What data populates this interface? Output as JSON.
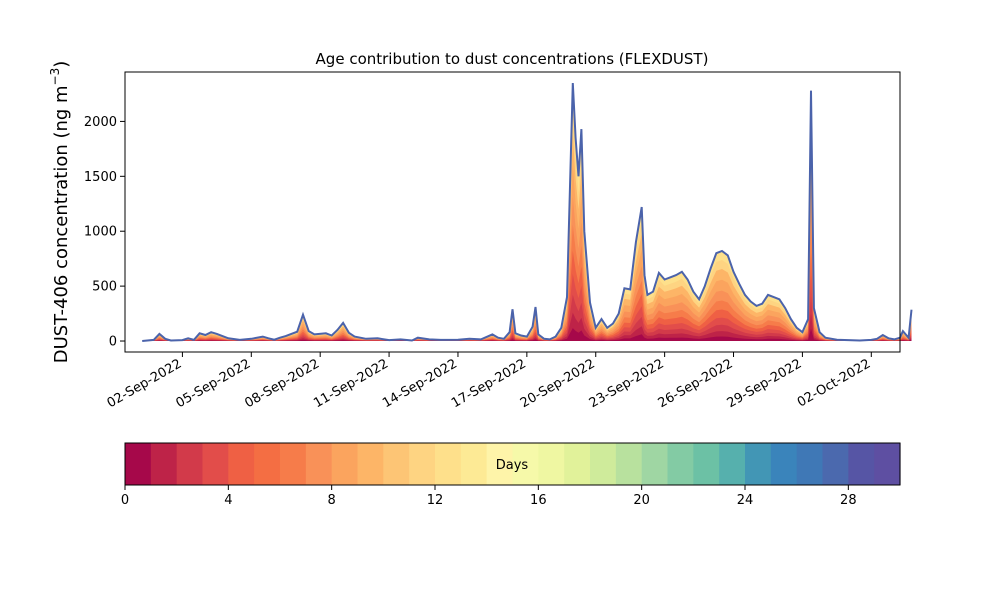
{
  "chart_data": {
    "type": "area",
    "title": "Age contribution to dust concentrations (FLEXDUST)",
    "ylabel_main": "DUST-406 concentration (ng m",
    "ylabel_sup": "−3",
    "ylabel_close": ")",
    "ylim": [
      -100,
      2450
    ],
    "xlim": [
      "2022-08-30T12:00",
      "2022-10-03T06:00"
    ],
    "yticks": [
      0,
      500,
      1000,
      1500,
      2000
    ],
    "yticklabels": [
      "0",
      "500",
      "1000",
      "1500",
      "2000"
    ],
    "xticks": [
      "2022-09-02",
      "2022-09-05",
      "2022-09-08",
      "2022-09-11",
      "2022-09-14",
      "2022-09-17",
      "2022-09-20",
      "2022-09-23",
      "2022-09-26",
      "2022-09-29",
      "2022-10-02"
    ],
    "xticklabels": [
      "02-Sep-2022",
      "05-Sep-2022",
      "08-Sep-2022",
      "11-Sep-2022",
      "14-Sep-2022",
      "17-Sep-2022",
      "20-Sep-2022",
      "23-Sep-2022",
      "26-Sep-2022",
      "29-Sep-2022",
      "02-Oct-2022"
    ],
    "grid": false,
    "total": [
      [
        "2022-08-31T06:00",
        0
      ],
      [
        "2022-08-31T18:00",
        10
      ],
      [
        "2022-09-01T00:00",
        65
      ],
      [
        "2022-09-01T06:00",
        20
      ],
      [
        "2022-09-01T12:00",
        5
      ],
      [
        "2022-09-02T00:00",
        8
      ],
      [
        "2022-09-02T06:00",
        25
      ],
      [
        "2022-09-02T12:00",
        10
      ],
      [
        "2022-09-02T18:00",
        70
      ],
      [
        "2022-09-03T00:00",
        55
      ],
      [
        "2022-09-03T06:00",
        80
      ],
      [
        "2022-09-03T12:00",
        65
      ],
      [
        "2022-09-04T00:00",
        25
      ],
      [
        "2022-09-04T12:00",
        10
      ],
      [
        "2022-09-05T00:00",
        20
      ],
      [
        "2022-09-05T12:00",
        40
      ],
      [
        "2022-09-05T18:00",
        25
      ],
      [
        "2022-09-06T00:00",
        12
      ],
      [
        "2022-09-06T06:00",
        30
      ],
      [
        "2022-09-06T12:00",
        45
      ],
      [
        "2022-09-07T00:00",
        85
      ],
      [
        "2022-09-07T06:00",
        240
      ],
      [
        "2022-09-07T12:00",
        90
      ],
      [
        "2022-09-07T18:00",
        60
      ],
      [
        "2022-09-08T06:00",
        70
      ],
      [
        "2022-09-08T12:00",
        50
      ],
      [
        "2022-09-08T18:00",
        100
      ],
      [
        "2022-09-09T00:00",
        165
      ],
      [
        "2022-09-09T06:00",
        75
      ],
      [
        "2022-09-09T12:00",
        40
      ],
      [
        "2022-09-10T00:00",
        20
      ],
      [
        "2022-09-10T12:00",
        25
      ],
      [
        "2022-09-11T00:00",
        8
      ],
      [
        "2022-09-11T12:00",
        15
      ],
      [
        "2022-09-12T00:00",
        5
      ],
      [
        "2022-09-12T06:00",
        30
      ],
      [
        "2022-09-12T18:00",
        15
      ],
      [
        "2022-09-13T06:00",
        10
      ],
      [
        "2022-09-14T00:00",
        12
      ],
      [
        "2022-09-14T12:00",
        20
      ],
      [
        "2022-09-15T00:00",
        15
      ],
      [
        "2022-09-15T12:00",
        60
      ],
      [
        "2022-09-15T18:00",
        30
      ],
      [
        "2022-09-16T00:00",
        20
      ],
      [
        "2022-09-16T06:00",
        80
      ],
      [
        "2022-09-16T09:00",
        290
      ],
      [
        "2022-09-16T12:00",
        70
      ],
      [
        "2022-09-16T18:00",
        50
      ],
      [
        "2022-09-17T00:00",
        40
      ],
      [
        "2022-09-17T06:00",
        130
      ],
      [
        "2022-09-17T09:00",
        310
      ],
      [
        "2022-09-17T12:00",
        60
      ],
      [
        "2022-09-17T18:00",
        20
      ],
      [
        "2022-09-18T00:00",
        15
      ],
      [
        "2022-09-18T06:00",
        40
      ],
      [
        "2022-09-18T12:00",
        120
      ],
      [
        "2022-09-18T18:00",
        400
      ],
      [
        "2022-09-19T00:00",
        2350
      ],
      [
        "2022-09-19T03:00",
        1850
      ],
      [
        "2022-09-19T06:00",
        1500
      ],
      [
        "2022-09-19T09:00",
        1930
      ],
      [
        "2022-09-19T12:00",
        1000
      ],
      [
        "2022-09-19T18:00",
        350
      ],
      [
        "2022-09-20T00:00",
        120
      ],
      [
        "2022-09-20T06:00",
        200
      ],
      [
        "2022-09-20T12:00",
        120
      ],
      [
        "2022-09-20T18:00",
        160
      ],
      [
        "2022-09-21T00:00",
        250
      ],
      [
        "2022-09-21T06:00",
        480
      ],
      [
        "2022-09-21T12:00",
        470
      ],
      [
        "2022-09-21T18:00",
        900
      ],
      [
        "2022-09-22T00:00",
        1220
      ],
      [
        "2022-09-22T03:00",
        600
      ],
      [
        "2022-09-22T06:00",
        420
      ],
      [
        "2022-09-22T12:00",
        450
      ],
      [
        "2022-09-22T18:00",
        620
      ],
      [
        "2022-09-23T00:00",
        560
      ],
      [
        "2022-09-23T06:00",
        580
      ],
      [
        "2022-09-23T12:00",
        600
      ],
      [
        "2022-09-23T18:00",
        630
      ],
      [
        "2022-09-24T00:00",
        560
      ],
      [
        "2022-09-24T06:00",
        450
      ],
      [
        "2022-09-24T12:00",
        380
      ],
      [
        "2022-09-24T18:00",
        500
      ],
      [
        "2022-09-25T00:00",
        660
      ],
      [
        "2022-09-25T06:00",
        800
      ],
      [
        "2022-09-25T12:00",
        820
      ],
      [
        "2022-09-25T18:00",
        780
      ],
      [
        "2022-09-26T00:00",
        630
      ],
      [
        "2022-09-26T06:00",
        520
      ],
      [
        "2022-09-26T12:00",
        420
      ],
      [
        "2022-09-26T18:00",
        360
      ],
      [
        "2022-09-27T00:00",
        320
      ],
      [
        "2022-09-27T06:00",
        340
      ],
      [
        "2022-09-27T12:00",
        420
      ],
      [
        "2022-09-27T18:00",
        400
      ],
      [
        "2022-09-28T00:00",
        380
      ],
      [
        "2022-09-28T06:00",
        300
      ],
      [
        "2022-09-28T12:00",
        200
      ],
      [
        "2022-09-28T18:00",
        120
      ],
      [
        "2022-09-29T00:00",
        80
      ],
      [
        "2022-09-29T06:00",
        200
      ],
      [
        "2022-09-29T09:00",
        2280
      ],
      [
        "2022-09-29T12:00",
        300
      ],
      [
        "2022-09-29T18:00",
        80
      ],
      [
        "2022-09-30T00:00",
        30
      ],
      [
        "2022-09-30T12:00",
        12
      ],
      [
        "2022-10-01T00:00",
        8
      ],
      [
        "2022-10-01T12:00",
        5
      ],
      [
        "2022-10-02T00:00",
        10
      ],
      [
        "2022-10-02T06:00",
        20
      ],
      [
        "2022-10-02T12:00",
        55
      ],
      [
        "2022-10-02T18:00",
        25
      ],
      [
        "2022-10-03T00:00",
        15
      ],
      [
        "2022-10-03T06:00",
        30
      ],
      [
        "2022-10-03T09:00",
        90
      ],
      [
        "2022-10-03T12:00",
        60
      ],
      [
        "2022-10-03T15:00",
        30
      ],
      [
        "2022-10-03T18:00",
        285
      ]
    ],
    "colorbar": {
      "label": "Days",
      "range": [
        0,
        30
      ],
      "ticks": [
        0,
        4,
        8,
        12,
        16,
        20,
        24,
        28
      ],
      "ticklabels": [
        "0",
        "4",
        "8",
        "12",
        "16",
        "20",
        "24",
        "28"
      ],
      "colors": [
        "#a6084a",
        "#be2348",
        "#d23a4a",
        "#e24d4a",
        "#ef6044",
        "#f46e43",
        "#f67c4a",
        "#f99158",
        "#fba45e",
        "#fdb567",
        "#fdc575",
        "#fed482",
        "#fee08b",
        "#fdea95",
        "#fef4a9",
        "#f6f9a9",
        "#eff7a2",
        "#e1f29a",
        "#cfeb9b",
        "#b8e19e",
        "#9fd6a3",
        "#83cba4",
        "#6cc1a5",
        "#56b0ad",
        "#4296b5",
        "#3a84bb",
        "#3f78b6",
        "#4b69ae",
        "#5655a5",
        "#5e4fa2"
      ]
    },
    "total_line_color": "#4b63ab"
  }
}
